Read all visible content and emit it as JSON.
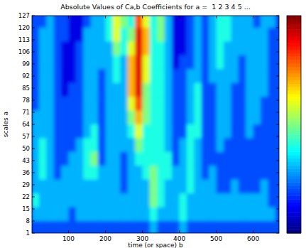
{
  "chart_data": {
    "type": "heatmap",
    "title": "Absolute Values of Ca,b Coefficients for a =  1 2 3 4 5 ...",
    "x_label": "time (or space) b",
    "y_label": "scales a",
    "xlim": [
      1,
      670
    ],
    "xticks": [
      100,
      200,
      300,
      400,
      500,
      600
    ],
    "ylim": [
      1,
      127
    ],
    "yticks": [
      1,
      8,
      15,
      22,
      29,
      36,
      43,
      50,
      57,
      64,
      71,
      78,
      85,
      92,
      99,
      106,
      113,
      120,
      127
    ],
    "x": [
      10,
      30,
      50,
      70,
      90,
      110,
      130,
      150,
      170,
      190,
      210,
      230,
      250,
      270,
      290,
      310,
      330,
      350,
      370,
      390,
      410,
      430,
      450,
      470,
      490,
      510,
      530,
      550,
      570,
      590,
      610,
      630,
      650,
      670
    ],
    "y": [
      124,
      116,
      108,
      100,
      92,
      84,
      76,
      68,
      60,
      52,
      44,
      36,
      28,
      20,
      12,
      4
    ],
    "cells": [
      [
        2,
        2,
        3,
        2,
        2,
        1,
        1,
        2,
        3,
        3,
        4,
        6,
        5,
        4,
        8,
        6,
        4,
        5,
        3,
        1,
        1,
        2,
        3,
        2,
        3,
        4,
        4,
        3,
        3,
        3,
        2,
        3,
        3,
        2
      ],
      [
        2,
        3,
        3,
        2,
        2,
        1,
        1,
        3,
        3,
        3,
        4,
        6,
        4,
        5,
        9,
        7,
        4,
        5,
        3,
        1,
        1,
        2,
        3,
        2,
        3,
        4,
        4,
        3,
        3,
        3,
        3,
        3,
        2,
        2
      ],
      [
        2,
        3,
        3,
        2,
        1,
        1,
        2,
        3,
        3,
        3,
        3,
        5,
        4,
        6,
        9,
        7,
        4,
        4,
        3,
        1,
        1,
        2,
        3,
        2,
        3,
        4,
        3,
        3,
        3,
        3,
        3,
        3,
        2,
        2
      ],
      [
        2,
        3,
        3,
        2,
        1,
        1,
        2,
        3,
        3,
        3,
        3,
        4,
        3,
        7,
        9,
        6,
        4,
        4,
        3,
        1,
        2,
        2,
        3,
        2,
        3,
        4,
        3,
        3,
        2,
        3,
        3,
        3,
        2,
        2
      ],
      [
        2,
        3,
        3,
        2,
        1,
        1,
        2,
        3,
        3,
        2,
        3,
        4,
        3,
        7,
        9,
        6,
        4,
        4,
        3,
        2,
        2,
        3,
        3,
        2,
        3,
        3,
        3,
        3,
        2,
        3,
        3,
        3,
        2,
        2
      ],
      [
        2,
        3,
        3,
        2,
        1,
        2,
        2,
        3,
        3,
        2,
        3,
        3,
        3,
        7,
        9,
        5,
        4,
        4,
        3,
        2,
        2,
        3,
        4,
        2,
        2,
        3,
        3,
        2,
        2,
        3,
        3,
        3,
        2,
        2
      ],
      [
        2,
        3,
        3,
        2,
        2,
        2,
        2,
        3,
        3,
        2,
        3,
        3,
        3,
        6,
        8,
        5,
        4,
        4,
        3,
        2,
        2,
        3,
        4,
        2,
        2,
        3,
        3,
        2,
        2,
        3,
        3,
        2,
        2,
        2
      ],
      [
        3,
        3,
        3,
        2,
        2,
        2,
        2,
        3,
        3,
        2,
        3,
        3,
        3,
        5,
        7,
        5,
        4,
        4,
        3,
        2,
        2,
        3,
        4,
        2,
        2,
        3,
        3,
        2,
        2,
        3,
        3,
        2,
        2,
        2
      ],
      [
        3,
        3,
        3,
        2,
        2,
        2,
        2,
        3,
        4,
        2,
        3,
        3,
        3,
        4,
        6,
        4,
        4,
        4,
        3,
        2,
        2,
        4,
        4,
        2,
        2,
        3,
        3,
        2,
        2,
        3,
        2,
        2,
        2,
        2
      ],
      [
        3,
        4,
        3,
        2,
        2,
        2,
        3,
        4,
        4,
        2,
        3,
        3,
        3,
        3,
        5,
        4,
        4,
        4,
        3,
        2,
        3,
        4,
        3,
        2,
        2,
        3,
        2,
        2,
        2,
        2,
        2,
        2,
        2,
        2
      ],
      [
        3,
        4,
        3,
        2,
        2,
        3,
        3,
        4,
        5,
        2,
        3,
        3,
        2,
        3,
        4,
        4,
        4,
        4,
        4,
        2,
        3,
        4,
        3,
        2,
        2,
        2,
        2,
        2,
        2,
        2,
        2,
        2,
        2,
        2
      ],
      [
        3,
        4,
        3,
        2,
        3,
        3,
        3,
        4,
        4,
        3,
        3,
        3,
        2,
        3,
        3,
        4,
        5,
        4,
        4,
        3,
        3,
        4,
        3,
        2,
        3,
        2,
        2,
        2,
        2,
        2,
        2,
        2,
        2,
        2
      ],
      [
        3,
        3,
        3,
        3,
        3,
        3,
        3,
        3,
        3,
        3,
        3,
        3,
        2,
        3,
        3,
        3,
        5,
        4,
        3,
        3,
        3,
        4,
        3,
        3,
        3,
        2,
        2,
        3,
        2,
        2,
        2,
        3,
        2,
        2
      ],
      [
        4,
        3,
        3,
        3,
        3,
        3,
        3,
        3,
        3,
        3,
        3,
        3,
        3,
        3,
        3,
        3,
        5,
        4,
        3,
        3,
        4,
        3,
        3,
        3,
        3,
        3,
        3,
        3,
        3,
        3,
        3,
        3,
        2,
        2
      ],
      [
        3,
        3,
        3,
        3,
        3,
        2,
        3,
        3,
        3,
        3,
        3,
        3,
        3,
        3,
        3,
        3,
        4,
        3,
        3,
        3,
        4,
        3,
        3,
        3,
        3,
        3,
        3,
        3,
        3,
        3,
        3,
        3,
        3,
        2
      ],
      [
        2,
        2,
        2,
        2,
        2,
        2,
        2,
        2,
        2,
        2,
        2,
        2,
        2,
        2,
        2,
        2,
        3,
        2,
        2,
        2,
        3,
        2,
        2,
        2,
        2,
        2,
        2,
        2,
        2,
        2,
        2,
        2,
        2,
        2
      ]
    ],
    "colorbar_range": [
      0,
      10
    ],
    "tick_labels": true
  }
}
